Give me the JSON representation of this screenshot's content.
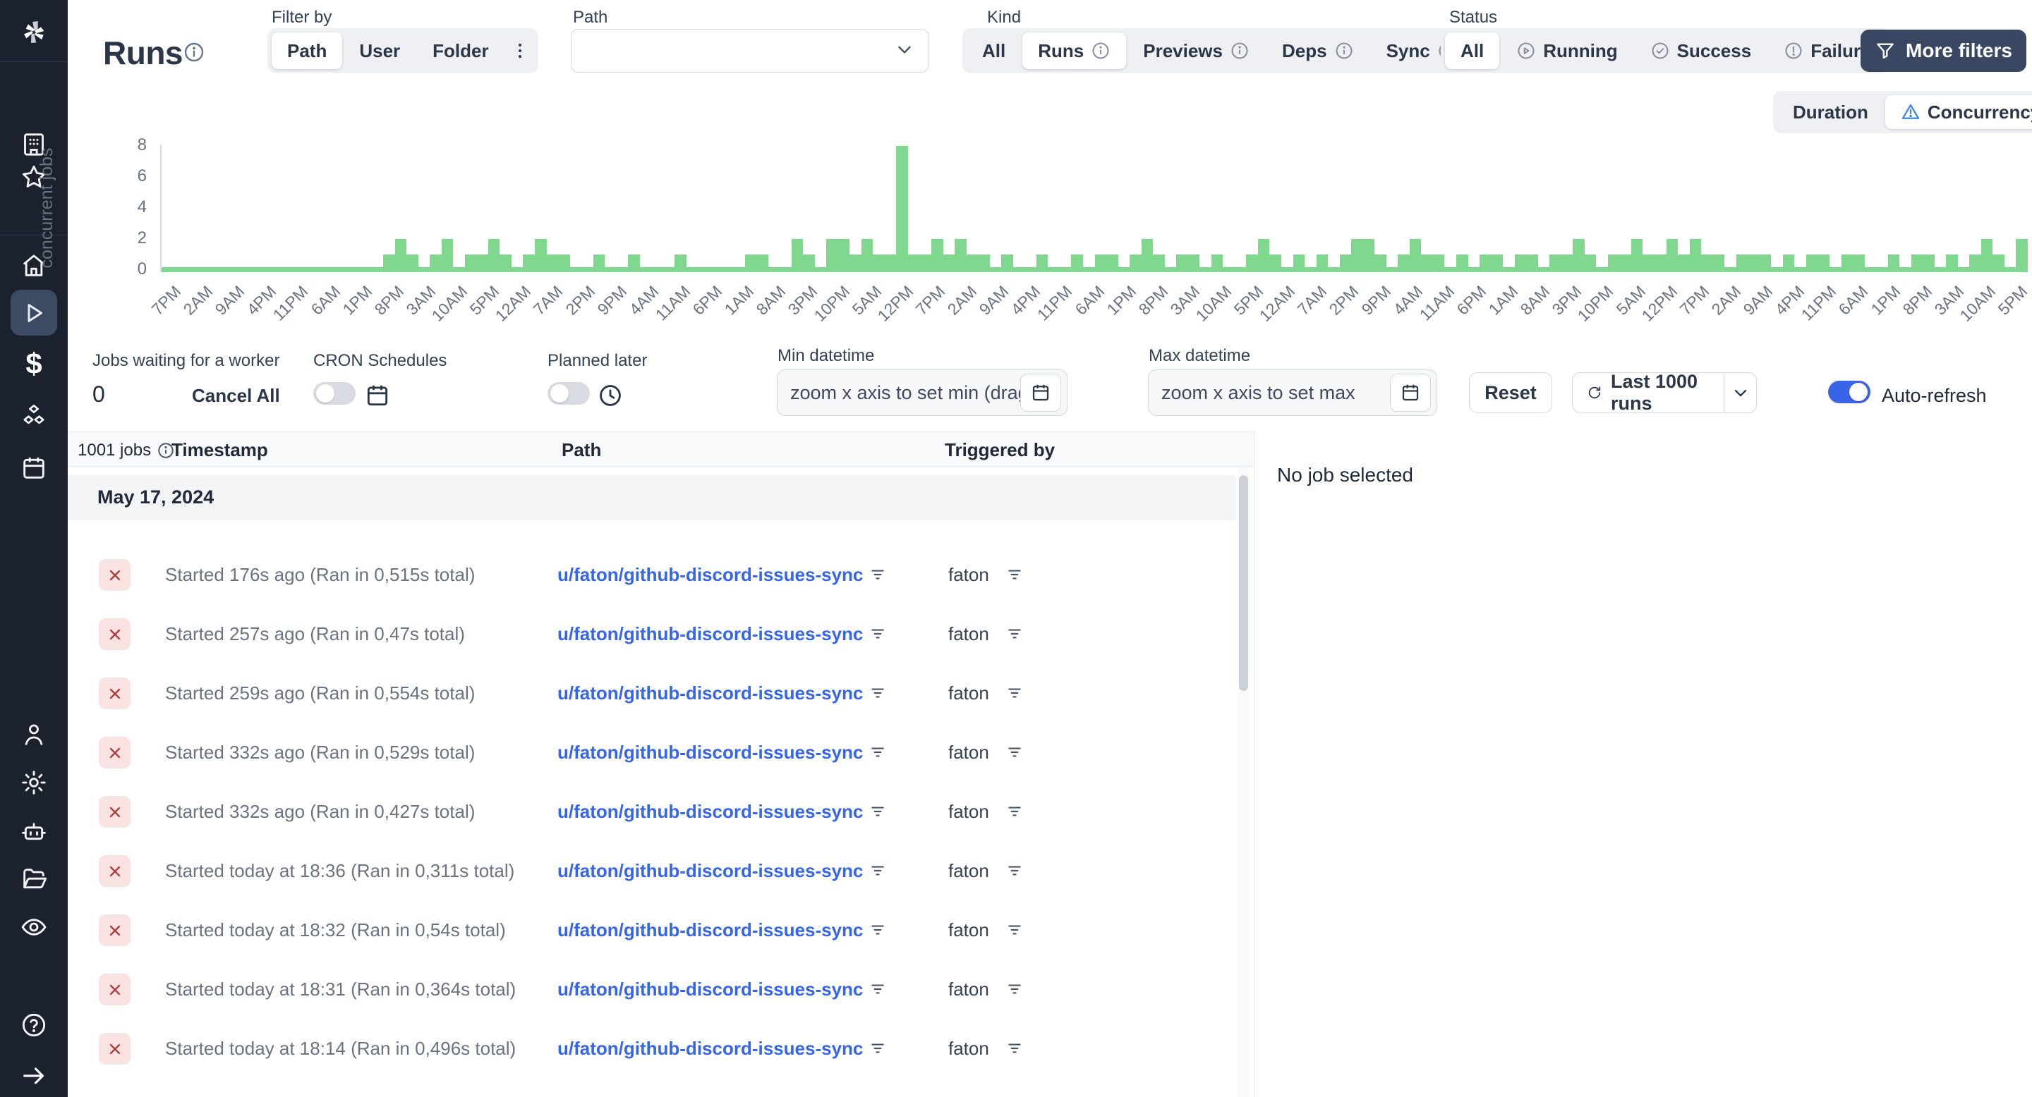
{
  "colors": {
    "sidebar_bg": "#1b212d",
    "sidebar_selected_bg": "#3c4a63",
    "accent_green": "#80d78e",
    "link_blue": "#3565ec",
    "toggle_blue": "#3b63e8",
    "more_filters_bg": "#394763",
    "failure_badge_bg": "#f9e2e2",
    "failure_badge_fg": "#ad3b3b",
    "concurrency_warning_blue": "#3b82f6"
  },
  "sidebar": {
    "icons": [
      "windmill-logo",
      "workspace",
      "favorites",
      "home",
      "runs",
      "variables",
      "resources",
      "schedules",
      "users",
      "settings",
      "workers",
      "folders",
      "audit-logs",
      "help",
      "expand"
    ]
  },
  "header": {
    "title": "Runs",
    "filter_by": {
      "label": "Filter by",
      "options": [
        {
          "label": "Path",
          "selected": true
        },
        {
          "label": "User",
          "selected": false
        },
        {
          "label": "Folder",
          "selected": false
        }
      ]
    },
    "path_filter": {
      "label": "Path",
      "value": ""
    },
    "kind": {
      "label": "Kind",
      "options": [
        {
          "label": "All"
        },
        {
          "label": "Runs",
          "selected": true,
          "info": true
        },
        {
          "label": "Previews",
          "info": true
        },
        {
          "label": "Deps",
          "info": true
        },
        {
          "label": "Sync",
          "info": true
        }
      ]
    },
    "status": {
      "label": "Status",
      "options": [
        {
          "label": "All",
          "selected": true
        },
        {
          "label": "Running",
          "icon": "play-circle-icon"
        },
        {
          "label": "Success",
          "icon": "check-circle-icon"
        },
        {
          "label": "Failure",
          "icon": "alert-circle-icon"
        }
      ]
    },
    "more_filters_label": "More filters"
  },
  "chart_toggle": {
    "options": [
      {
        "label": "Duration",
        "selected": false
      },
      {
        "label": "Concurrency",
        "selected": true,
        "icon": "warning-triangle-icon"
      }
    ]
  },
  "chart_data": {
    "type": "bar",
    "title": "",
    "ylabel": "concurrent jobs",
    "xlabel": "",
    "ylim": [
      0,
      8
    ],
    "yticks": [
      0,
      2,
      4,
      6,
      8
    ],
    "grid": false,
    "legend": false,
    "note": "concurrency histogram; values estimated from pixels, one spike reaches 8",
    "xticks": [
      "7PM",
      "2AM",
      "9AM",
      "4PM",
      "11PM",
      "6AM",
      "1PM",
      "8PM",
      "3AM",
      "10AM",
      "5PM",
      "12AM",
      "7AM",
      "2PM",
      "9PM",
      "4AM",
      "11AM",
      "6PM",
      "1AM",
      "8AM",
      "3PM",
      "10PM",
      "5AM",
      "12PM",
      "7PM",
      "2AM",
      "9AM",
      "4PM",
      "11PM",
      "6AM",
      "1PM",
      "8PM",
      "3AM",
      "10AM",
      "5PM",
      "12AM",
      "7AM",
      "2PM",
      "9PM",
      "4AM",
      "11AM",
      "6PM",
      "1AM",
      "8AM",
      "3PM",
      "10PM",
      "5AM",
      "12PM",
      "7PM",
      "2AM",
      "9AM",
      "4PM",
      "11PM",
      "6AM",
      "1PM",
      "8PM",
      "3AM",
      "10AM",
      "5PM"
    ],
    "values": [
      0,
      0,
      0,
      0,
      0,
      0,
      0,
      0,
      0,
      0,
      0,
      0,
      0,
      0,
      0,
      0,
      0,
      0,
      0,
      1,
      2,
      1,
      0,
      1,
      2,
      0,
      1,
      1,
      2,
      1,
      0,
      1,
      2,
      1,
      1,
      0,
      0,
      1,
      0,
      0,
      1,
      0,
      0,
      0,
      1,
      0,
      0,
      0,
      0,
      0,
      1,
      1,
      0,
      0,
      2,
      1,
      0,
      2,
      2,
      1,
      2,
      1,
      1,
      8,
      1,
      1,
      2,
      1,
      2,
      1,
      1,
      0,
      1,
      0,
      0,
      1,
      0,
      0,
      1,
      0,
      1,
      1,
      0,
      1,
      2,
      1,
      0,
      1,
      1,
      0,
      1,
      0,
      0,
      1,
      2,
      1,
      0,
      1,
      0,
      1,
      0,
      1,
      2,
      2,
      1,
      0,
      1,
      2,
      1,
      1,
      0,
      1,
      0,
      1,
      1,
      0,
      1,
      1,
      0,
      1,
      1,
      2,
      1,
      0,
      1,
      1,
      2,
      1,
      1,
      2,
      1,
      2,
      1,
      1,
      0,
      1,
      1,
      1,
      0,
      1,
      0,
      1,
      1,
      0,
      1,
      1,
      0,
      0,
      1,
      0,
      1,
      1,
      0,
      1,
      0,
      1,
      2,
      1,
      0,
      2
    ]
  },
  "controls": {
    "jobs_waiting": {
      "label": "Jobs waiting for a worker",
      "count": "0",
      "cancel_all_label": "Cancel All"
    },
    "cron": {
      "label": "CRON Schedules",
      "enabled": false
    },
    "planned": {
      "label": "Planned later",
      "enabled": false
    },
    "min_datetime": {
      "label": "Min datetime",
      "placeholder": "zoom x axis to set min (drag wi"
    },
    "max_datetime": {
      "label": "Max datetime",
      "placeholder": "zoom x axis to set max"
    },
    "reset_label": "Reset",
    "runs_select_label": "Last 1000 runs",
    "auto_refresh": {
      "label": "Auto-refresh",
      "enabled": true
    }
  },
  "table": {
    "jobs_count_label": "1001 jobs",
    "columns": [
      "Timestamp",
      "Path",
      "Triggered by"
    ],
    "date_group": "May 17, 2024",
    "rows": [
      {
        "status": "failure",
        "timestamp": "Started 176s ago (Ran in 0,515s total)",
        "path": "u/faton/github-discord-issues-sync",
        "triggered_by": "faton"
      },
      {
        "status": "failure",
        "timestamp": "Started 257s ago (Ran in 0,47s total)",
        "path": "u/faton/github-discord-issues-sync",
        "triggered_by": "faton"
      },
      {
        "status": "failure",
        "timestamp": "Started 259s ago (Ran in 0,554s total)",
        "path": "u/faton/github-discord-issues-sync",
        "triggered_by": "faton"
      },
      {
        "status": "failure",
        "timestamp": "Started 332s ago (Ran in 0,529s total)",
        "path": "u/faton/github-discord-issues-sync",
        "triggered_by": "faton"
      },
      {
        "status": "failure",
        "timestamp": "Started 332s ago (Ran in 0,427s total)",
        "path": "u/faton/github-discord-issues-sync",
        "triggered_by": "faton"
      },
      {
        "status": "failure",
        "timestamp": "Started today at 18:36 (Ran in 0,311s total)",
        "path": "u/faton/github-discord-issues-sync",
        "triggered_by": "faton"
      },
      {
        "status": "failure",
        "timestamp": "Started today at 18:32 (Ran in 0,54s total)",
        "path": "u/faton/github-discord-issues-sync",
        "triggered_by": "faton"
      },
      {
        "status": "failure",
        "timestamp": "Started today at 18:31 (Ran in 0,364s total)",
        "path": "u/faton/github-discord-issues-sync",
        "triggered_by": "faton"
      },
      {
        "status": "failure",
        "timestamp": "Started today at 18:14 (Ran in 0,496s total)",
        "path": "u/faton/github-discord-issues-sync",
        "triggered_by": "faton"
      }
    ]
  },
  "detail_panel": {
    "empty_label": "No job selected"
  }
}
